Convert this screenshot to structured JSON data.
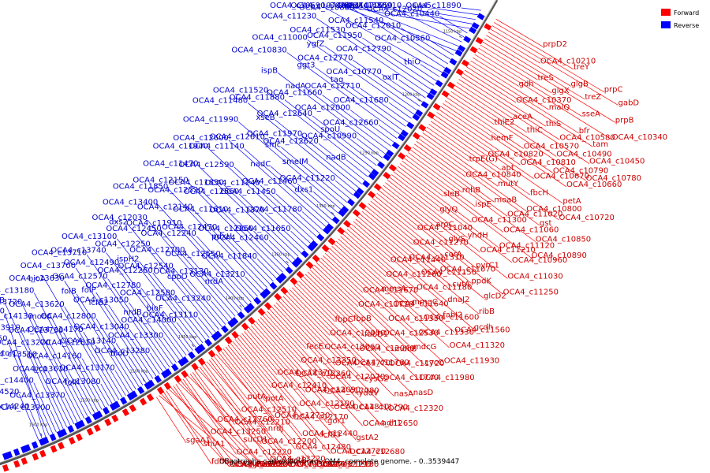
{
  "caption": "Oligotropha carboxidovorans OM4, complete genome. - 0..3539447",
  "legend": [
    {
      "label": "Forward",
      "color": "#ff0000"
    },
    {
      "label": "Reverse",
      "color": "#0000ff"
    }
  ],
  "ticks": [
    "1150 kbp",
    "1200 kbp",
    "1250 kbp",
    "1300 kbp",
    "1350 kbp",
    "1400 kbp",
    "1450 kbp",
    "1500 kbp",
    "1550 kbp",
    "1600 kbp"
  ],
  "reverse_labels": [
    "OCA4_c11890",
    "sua5",
    "OCA4_c10910",
    "OCA4_c10700",
    "thiG",
    "OCA4_c10440",
    "OCA4_c12020",
    "OCA4_c11550",
    "htpX",
    "OCA4_c10740",
    "OCA4_c10560",
    "OCA4_c12010",
    "OCA4_c11540",
    "OCA4_c10880",
    "OCA4_c10690",
    "thiO",
    "OCA4_c12790",
    "OCA4_c11950",
    "OCA4_c11530",
    "OCA4_c11230",
    "oxlT",
    "OCA4_c10770",
    "OCA4_c12770",
    "ygfZ",
    "OCA4_c11000",
    "OCA4_c11680",
    "OCA4_c12710",
    "tag",
    "ggt3",
    "OCA4_c10830",
    "OCA4_c12660",
    "OCA4_c12000",
    "OCA4_c11660",
    "nadA",
    "ispB",
    "OCA4_c10990",
    "spoU",
    "OCA4_c12640",
    "OCA4_c11880",
    "OCA4_c11520",
    "nadB",
    "OCA4_c12620",
    "OCA4_c11970",
    "xseB",
    "OCA4_c11480",
    "OCA4_c11220",
    "smeIM",
    "smc",
    "OCA4_c12610",
    "OCA4_c11990",
    "dxs1",
    "OCA4_c11460",
    "nadC",
    "OCA4_c11140",
    "OCA4_c12600",
    "OCA4_c11780",
    "OCA4_c11450",
    "OCA4_c11240",
    "OCA4_c12590",
    "OCA4_c11940",
    "OCA4_c11650",
    "OCA4_c11370",
    "OCA4_c12560",
    "OCA4_c11830",
    "OCA4_c11470",
    "OCA4_c12460",
    "OCA4_c12160",
    "OCA4_c11610",
    "OCA4_c12520",
    "OCA4_c12150",
    "OCA4_c11840",
    "pdxH",
    "OCA4_c12470",
    "OCA4_c12140",
    "OCA4_c11850",
    "OCA4_c13210",
    "OCA4_c12550",
    "OCA4_c12240",
    "OCA4_c11910",
    "OCA4_c13400",
    "nrdA",
    "OCA4_c13130",
    "OCA4_c12700",
    "OCA4_c12450",
    "OCA4_c12030",
    "OCA4_c13240",
    "cpoO",
    "OCA4_c12540",
    "OCA4_c12250",
    "dxs2",
    "OCA4_c13110",
    "OCA4_c12580",
    "OCA4_c12260",
    "ispH2",
    "OCA4_c13100",
    "OCA4_c14000",
    "bioF",
    "OCA4_c12780",
    "OCA4_c12490",
    "OCA4_c13740",
    "OCA4_c13300",
    "nrdB",
    "OCA4_c13050",
    "OCA4_c12570",
    "OCA4_c13710",
    "OCA4_c13280",
    "OCA4_c13040",
    "lcfB2",
    "folP",
    "OCA4_c13700",
    "bioD",
    "OCA4_c13140",
    "OCA4_c12800",
    "folB",
    "OCA4_c13630",
    "OCA4_c13170",
    "OCA4_c12810",
    "OCA4_c14170",
    "OCA4_c13620",
    "bioA",
    "OCA4_c13080",
    "OCA4_c14160",
    "OCA4_c13730",
    "mobA",
    "OCA4_c13180",
    "folK",
    "OCA4_c13610",
    "OCA4_c13270",
    "OCA4_c14130",
    "OCA4_c13720",
    "OCA4_c13370",
    "pcp",
    "OCA4_c13510",
    "OCA4_c13910",
    "amaB",
    "OCA4_c13900",
    "OCA4_c14400",
    "tolC",
    "OCA4_c13750",
    "OCA4_c14070",
    "OCA4_c14240",
    "OCA4_c14520"
  ],
  "forward_labels": [
    "prpD2",
    "treY",
    "prpC",
    "gabD",
    "OCA4_c10210",
    "glgB",
    "treZ",
    "prpB",
    "treS",
    "glgX",
    "sseA",
    "OCA4_c10340",
    "gdh",
    "malQ",
    "bfr",
    "tam",
    "OCA4_c10370",
    "thiS",
    "OCA4_c10580",
    "OCA4_c10450",
    "aceA",
    "thiC",
    "OCA4_c10490",
    "OCA4_c10780",
    "thiE2",
    "OCA4_c10570",
    "OCA4_c10790",
    "OCA4_c10660",
    "hemF",
    "OCA4_c10810",
    "OCA4_c10670",
    "petA",
    "OCA4_c10820",
    "apt",
    "fbcH",
    "OCA4_c10720",
    "trpE(G)",
    "mutY",
    "OCA4_c10800",
    "gst",
    "OCA4_c10840",
    "moaB",
    "OCA4_c11020",
    "OCA4_c10850",
    "rnhB",
    "ispE",
    "OCA4_c11060",
    "OCA4_c10890",
    "sleB",
    "OCA4_c11300",
    "OCA4_c11120",
    "OCA4_c10960",
    "glyQ",
    "yhdH",
    "OCA4_c11210",
    "OCA4_c11030",
    "aroC",
    "glyS",
    "pyrC1",
    "OCA4_c11250",
    "OCA4_c11040",
    "corA",
    "ppdK",
    "glcD2",
    "OCA4_c11270",
    "OCA4_c11070",
    "cutA",
    "ribB",
    "OCA4_c11310",
    "OCA4_c11150",
    "dnaJ2",
    "gcdh",
    "OCA4_c11440",
    "OCA4_c11180",
    "fabI2",
    "OCA4_c11560",
    "OCA4_c11260",
    "mmgC",
    "OCA4_c11600",
    "OCA4_c11320",
    "mmsA",
    "OCA4_c11640",
    "OCA4_c11330",
    "OCA4_c11930",
    "OCA4_c11670",
    "OCA4_c11350",
    "mdcG",
    "cycC",
    "OCA4_c11710",
    "OCA4_c12530",
    "mdcB",
    "OCA4_c11980",
    "fbpB",
    "fabD1",
    "OCA4_c11720",
    "nasD",
    "fbpC",
    "OCA4_c12040",
    "OCA4_c11740",
    "nasA",
    "OCA4_c12050",
    "OCA4_c11760",
    "cysG2",
    "OCA4_c12320",
    "OCA4_c12060",
    "OCA4_c11770",
    "yddV",
    "adh1",
    "fecE",
    "OCA4_c12070",
    "OCA4_c11790",
    "OCA4_c12650",
    "OCA4_c12350",
    "OCA4_c12080",
    "OCA4_c11810",
    "gstA2",
    "OCA4_c12360",
    "OCA4_c12090",
    "gor1",
    "OCA4_c12680",
    "OCA4_c12370",
    "OCA4_c12100",
    "lcfB3",
    "OCA4_c12720",
    "OCA4_c12410",
    "OCA4_c12170",
    "OCA4_c12440",
    "OCA4_c12180",
    "potA",
    "OCA4_c12730",
    "OCA4_c12480",
    "OCA4_c12190",
    "putA",
    "nrdJ",
    "potB",
    "OCA4_c12740",
    "OCA4_c12510",
    "OCA4_c12200",
    "OCA4_c13220",
    "OCA4_c12750",
    "OCA4_c12210",
    "sucD1",
    "metE",
    "OCA4_c13030",
    "OCA4_c12760",
    "OCA4_c12220",
    "exbB",
    "sucD2",
    "OCA4_c13250",
    "fdhA1",
    "OCA4_c12230",
    "exbD",
    "shiA1",
    "fdhB",
    "OCA4_c12270",
    "glpD",
    "sgaA1"
  ]
}
